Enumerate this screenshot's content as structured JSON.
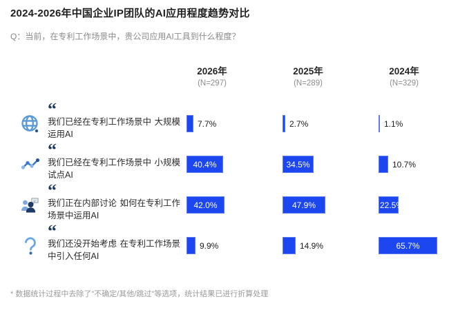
{
  "title": "2024-2026年中国企业IP团队的AI应用程度趋势对比",
  "question": "Q：当前，在专利工作场景中，贵公司应用AI工具到什么程度？",
  "footnote": "* 数据统计过程中去除了\"不确定/其他/跳过\"等选项，统计结果已进行折算处理",
  "quote_glyph": "“",
  "colors": {
    "bar_fill": "#1c46f0",
    "bar_border": "#5d7bf5",
    "quote": "#1e3a5f",
    "icon_light_blue": "#5b9bd5",
    "icon_dark_navy": "#1f3a63",
    "title_text": "#1f1f1f",
    "muted_text": "#8c8c8c"
  },
  "columns": [
    {
      "year": "2026年",
      "n": "(N=297)"
    },
    {
      "year": "2025年",
      "n": "(N=289)"
    },
    {
      "year": "2024年",
      "n": "(N=329)"
    }
  ],
  "rows": [
    {
      "icon": "globe-icon",
      "lines": [
        "我们已经在专利工作场景中",
        "大规模运用AI"
      ],
      "labels": [
        "7.7%",
        "2.7%",
        "1.1%"
      ],
      "values": [
        7.7,
        2.7,
        1.1
      ]
    },
    {
      "icon": "trend-icon",
      "lines": [
        "我们已经在专利工作场景中",
        "小规模试点AI"
      ],
      "labels": [
        "40.4%",
        "34.5%",
        "10.7%"
      ],
      "values": [
        40.4,
        34.5,
        10.7
      ]
    },
    {
      "icon": "discussion-icon",
      "lines": [
        "我们正在内部讨论",
        "如何在专利工作场景中运用AI"
      ],
      "labels": [
        "42.0%",
        "47.9%",
        "22.5%"
      ],
      "values": [
        42.0,
        47.9,
        22.5
      ]
    },
    {
      "icon": "question-icon",
      "lines": [
        "我们还没开始考虑",
        "在专利工作场景中引入任何AI"
      ],
      "labels": [
        "9.9%",
        "14.9%",
        "65.7%"
      ],
      "values": [
        9.9,
        14.9,
        65.7
      ]
    }
  ],
  "chart_data": {
    "type": "bar",
    "orientation": "horizontal",
    "title": "2024-2026年中国企业IP团队的AI应用程度趋势对比",
    "subtitle": "Q：当前，在专利工作场景中，贵公司应用AI工具到什么程度？",
    "categories": [
      "我们已经在专利工作场景中大规模运用AI",
      "我们已经在专利工作场景中小规模试点AI",
      "我们正在内部讨论如何在专利工作场景中运用AI",
      "我们还没开始考虑在专利工作场景中引入任何AI"
    ],
    "series": [
      {
        "name": "2026年 (N=297)",
        "values": [
          7.7,
          40.4,
          42.0,
          9.9
        ]
      },
      {
        "name": "2025年 (N=289)",
        "values": [
          2.7,
          34.5,
          47.9,
          14.9
        ]
      },
      {
        "name": "2024年 (N=329)",
        "values": [
          1.1,
          10.7,
          22.5,
          65.7
        ]
      }
    ],
    "unit": "%",
    "xlim": [
      0,
      100
    ],
    "grid": false,
    "legend_position": "column-headers-top",
    "footnote": "* 数据统计过程中去除了\"不确定/其他/跳过\"等选项，统计结果已进行折算处理"
  }
}
